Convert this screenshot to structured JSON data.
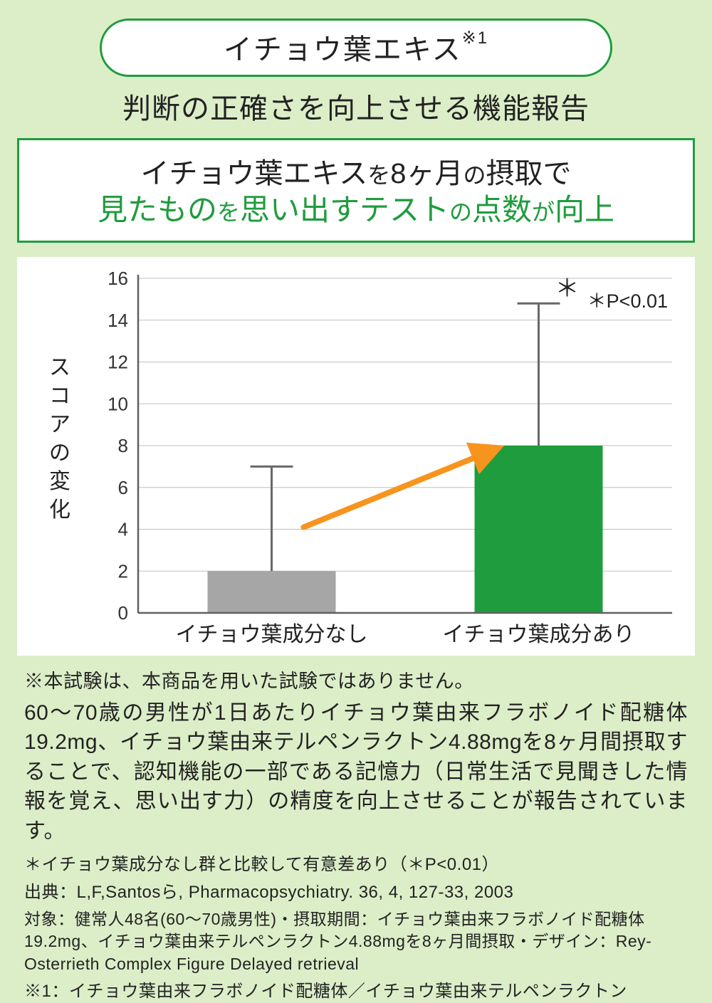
{
  "background_color": "#dceec8",
  "accent_green": "#1f9c3e",
  "pill": {
    "text": "イチョウ葉エキス",
    "superscript": "※1",
    "border_color": "#1f9c3e",
    "bg": "#ffffff",
    "fontsize": 40
  },
  "subtitle": "判断の正確さを向上させる機能報告",
  "headline": {
    "line1_a": "イチョウ葉エキス",
    "line1_b": "を",
    "line1_c": "8ヶ月",
    "line1_d": "の",
    "line1_e": "摂取で",
    "line2_a": "見たもの",
    "line2_b": "を",
    "line2_c": "思い出すテスト",
    "line2_d": "の",
    "line2_e": "点数",
    "line2_f": "が",
    "line2_g": "向上",
    "line2_color": "#1f9c3e",
    "border_color": "#1f9c3e",
    "bg": "#ffffff"
  },
  "chart": {
    "type": "bar",
    "bg": "#ffffff",
    "ylabel": "スコアの変化",
    "ylabel_fontsize": 30,
    "ylim": [
      0,
      16
    ],
    "yticks": [
      0,
      2,
      4,
      6,
      8,
      10,
      12,
      14,
      16
    ],
    "tick_fontsize": 26,
    "gridline_color": "#bfbfbf",
    "axis_color": "#606060",
    "bars": [
      {
        "label": "イチョウ葉成分なし",
        "value": 2.0,
        "error_upper": 7.0,
        "color": "#a6a6a6"
      },
      {
        "label": "イチョウ葉成分あり",
        "value": 8.0,
        "error_upper": 14.8,
        "color": "#1f9c3e"
      }
    ],
    "xlabel_fontsize": 30,
    "errorbar_color": "#686868",
    "errorbar_width": 3,
    "arrow": {
      "color": "#f7941e",
      "width": 8
    },
    "sig_marker": "＊",
    "sig_note": "＊P<0.01",
    "sig_fontsize": 27
  },
  "notes": {
    "disclaimer": "※本試験は、本商品を用いた試験ではありません。",
    "desc": "60〜70歳の男性が1日あたりイチョウ葉由来フラボノイド配糖体19.2mg、イチョウ葉由来テルペンラクトン4.88mgを8ヶ月間摂取することで、認知機能の一部である記憶力（日常生活で見聞きした情報を覚え、思い出す力）の精度を向上させることが報告されています。",
    "sig": "＊イチョウ葉成分なし群と比較して有意差あり（＊P<0.01）",
    "source": "出典：L,F,Santosら, Pharmacopsychiatry. 36, 4, 127-33, 2003",
    "subjects": "対象：健常人48名(60〜70歳男性)・摂取期間：イチョウ葉由来フラボノイド配糖体19.2mg、イチョウ葉由来テルペンラクトン4.88mgを8ヶ月間摂取・デザイン：Rey-Osterrieth Complex Figure Delayed retrieval",
    "footnote1": "※1：イチョウ葉由来フラボノイド配糖体／イチョウ葉由来テルペンラクトン"
  }
}
